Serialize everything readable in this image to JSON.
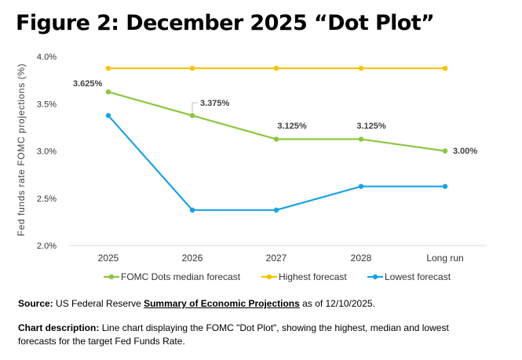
{
  "figure_title": "Figure 2: December 2025 “Dot Plot”",
  "source": {
    "label": "Source:",
    "text_before": "US Federal Reserve",
    "link_text": "Summary of Economic Projections",
    "text_after": "as of 12/10/2025."
  },
  "description": {
    "label": "Chart description:",
    "text": "Line chart displaying the FOMC \"Dot Plot\", showing the highest, median and lowest forecasts for the target Fed Funds Rate."
  },
  "chart_data": {
    "type": "line",
    "ylabel": "Fed funds rate FOMC projections (%)",
    "xlabel": "",
    "categories": [
      "2025",
      "2026",
      "2027",
      "2028",
      "Long run"
    ],
    "ylim": [
      2.0,
      4.0
    ],
    "yticks": [
      2.0,
      2.5,
      3.0,
      3.5,
      4.0
    ],
    "ytick_labels": [
      "2.0%",
      "2.5%",
      "3.0%",
      "3.5%",
      "4.0%"
    ],
    "legend_position": "bottom",
    "series": [
      {
        "name": "FOMC Dots median forecast",
        "color": "#8cc63f",
        "values": [
          3.625,
          3.375,
          3.125,
          3.125,
          3.0
        ],
        "labels": [
          "3.625%",
          "3.375%",
          "3.125%",
          "3.125%",
          "3.00%"
        ]
      },
      {
        "name": "Highest forecast",
        "color": "#f5c400",
        "values": [
          3.875,
          3.875,
          3.875,
          3.875,
          3.875
        ],
        "labels": []
      },
      {
        "name": "Lowest forecast",
        "color": "#1aa3e6",
        "values": [
          3.375,
          2.375,
          2.375,
          2.625,
          2.625
        ],
        "labels": []
      }
    ]
  }
}
